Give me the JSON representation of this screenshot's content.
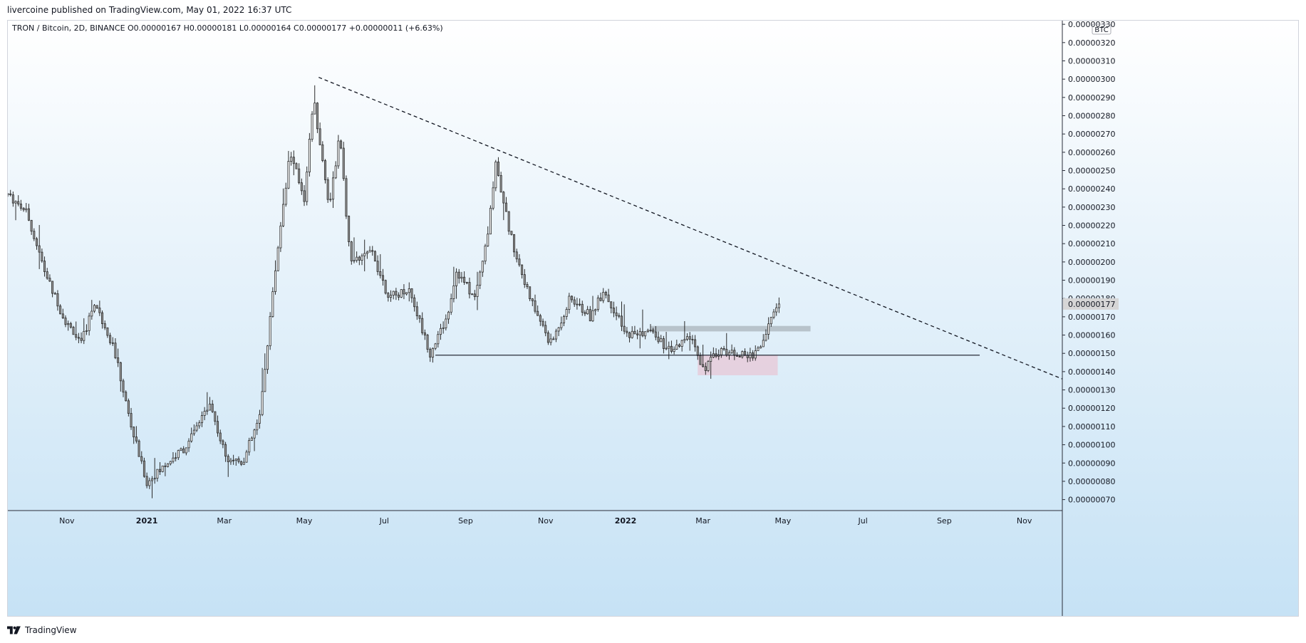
{
  "header": {
    "publisher": "livercoine published on TradingView.com, May 01, 2022 16:37 UTC"
  },
  "footer": {
    "brand": "TradingView",
    "logo_icon": "tradingview-logo-icon"
  },
  "colors": {
    "candle_body": "#9a9a9a",
    "wick": "#2b2b2b",
    "last_price_label_bg": "#d6d6d6",
    "resistance_zone": "#a9b4bb",
    "support_zone": "#e7c9d8"
  },
  "chart_data": {
    "type": "candlestick",
    "legend": "TRON / Bitcoin, 2D, BINANCE  O0.00000167  H0.00000181  L0.00000164  C0.00000177  +0.00000011 (+6.63%)",
    "ohlc": {
      "symbol": "TRON / Bitcoin",
      "interval": "2D",
      "exchange": "BINANCE",
      "open": "0.00000167",
      "high": "0.00000181",
      "low": "0.00000164",
      "close": "0.00000177",
      "change": "+0.00000011 (+6.63%)"
    },
    "currency_label": "BTC",
    "last_price": 1.77e-06,
    "last_price_label": "0.00000177",
    "x_ticks": [
      {
        "label": "Nov",
        "date": "2020-11-01",
        "bold": false
      },
      {
        "label": "2021",
        "date": "2021-01-01",
        "bold": true
      },
      {
        "label": "Mar",
        "date": "2021-03-01",
        "bold": false
      },
      {
        "label": "May",
        "date": "2021-05-01",
        "bold": false
      },
      {
        "label": "Jul",
        "date": "2021-07-01",
        "bold": false
      },
      {
        "label": "Sep",
        "date": "2021-09-01",
        "bold": false
      },
      {
        "label": "Nov",
        "date": "2021-11-01",
        "bold": false
      },
      {
        "label": "2022",
        "date": "2022-01-01",
        "bold": true
      },
      {
        "label": "Mar",
        "date": "2022-03-01",
        "bold": false
      },
      {
        "label": "May",
        "date": "2022-05-01",
        "bold": false
      },
      {
        "label": "Jul",
        "date": "2022-07-01",
        "bold": false
      },
      {
        "label": "Sep",
        "date": "2022-09-01",
        "bold": false
      },
      {
        "label": "Nov",
        "date": "2022-11-01",
        "bold": false
      }
    ],
    "y_ticks": [
      {
        "value": 3.3e-06,
        "label": "0.00000330"
      },
      {
        "value": 3.2e-06,
        "label": "0.00000320"
      },
      {
        "value": 3.1e-06,
        "label": "0.00000310"
      },
      {
        "value": 3e-06,
        "label": "0.00000300"
      },
      {
        "value": 2.9e-06,
        "label": "0.00000290"
      },
      {
        "value": 2.8e-06,
        "label": "0.00000280"
      },
      {
        "value": 2.7e-06,
        "label": "0.00000270"
      },
      {
        "value": 2.6e-06,
        "label": "0.00000260"
      },
      {
        "value": 2.5e-06,
        "label": "0.00000250"
      },
      {
        "value": 2.4e-06,
        "label": "0.00000240"
      },
      {
        "value": 2.3e-06,
        "label": "0.00000230"
      },
      {
        "value": 2.2e-06,
        "label": "0.00000220"
      },
      {
        "value": 2.1e-06,
        "label": "0.00000210"
      },
      {
        "value": 2e-06,
        "label": "0.00000200"
      },
      {
        "value": 1.9e-06,
        "label": "0.00000190"
      },
      {
        "value": 1.8e-06,
        "label": "0.00000180"
      },
      {
        "value": 1.7e-06,
        "label": "0.00000170"
      },
      {
        "value": 1.6e-06,
        "label": "0.00000160"
      },
      {
        "value": 1.5e-06,
        "label": "0.00000150"
      },
      {
        "value": 1.4e-06,
        "label": "0.00000140"
      },
      {
        "value": 1.3e-06,
        "label": "0.00000130"
      },
      {
        "value": 1.2e-06,
        "label": "0.00000120"
      },
      {
        "value": 1.1e-06,
        "label": "0.00000110"
      },
      {
        "value": 1e-06,
        "label": "0.00000100"
      },
      {
        "value": 9e-07,
        "label": "0.00000090"
      },
      {
        "value": 8e-07,
        "label": "0.00000080"
      },
      {
        "value": 7e-07,
        "label": "0.00000070"
      }
    ],
    "x_range": [
      "2020-09-17",
      "2022-11-30"
    ],
    "y_range": [
      6.4e-07,
      3.32e-06
    ],
    "series_path": [
      [
        "2020-09-17",
        2.37e-06
      ],
      [
        "2020-10-01",
        2.28e-06
      ],
      [
        "2020-10-15",
        1.95e-06
      ],
      [
        "2020-10-29",
        1.7e-06
      ],
      [
        "2020-11-12",
        1.55e-06
      ],
      [
        "2020-11-22",
        1.78e-06
      ],
      [
        "2020-12-06",
        1.55e-06
      ],
      [
        "2020-12-20",
        1.1e-06
      ],
      [
        "2021-01-01",
        7.9e-07
      ],
      [
        "2021-01-14",
        8.8e-07
      ],
      [
        "2021-02-01",
        1e-06
      ],
      [
        "2021-02-18",
        1.23e-06
      ],
      [
        "2021-03-01",
        9.5e-07
      ],
      [
        "2021-03-15",
        9e-07
      ],
      [
        "2021-03-28",
        1.15e-06
      ],
      [
        "2021-04-05",
        1.7e-06
      ],
      [
        "2021-04-12",
        2.15e-06
      ],
      [
        "2021-04-20",
        2.6e-06
      ],
      [
        "2021-05-01",
        2.35e-06
      ],
      [
        "2021-05-08",
        2.9e-06
      ],
      [
        "2021-05-20",
        2.3e-06
      ],
      [
        "2021-05-28",
        2.7e-06
      ],
      [
        "2021-06-05",
        2e-06
      ],
      [
        "2021-06-22",
        2.05e-06
      ],
      [
        "2021-07-05",
        1.8e-06
      ],
      [
        "2021-07-20",
        1.85e-06
      ],
      [
        "2021-08-05",
        1.5e-06
      ],
      [
        "2021-08-18",
        1.7e-06
      ],
      [
        "2021-08-25",
        1.95e-06
      ],
      [
        "2021-09-08",
        1.8e-06
      ],
      [
        "2021-09-18",
        2.15e-06
      ],
      [
        "2021-09-24",
        2.55e-06
      ],
      [
        "2021-10-05",
        2.15e-06
      ],
      [
        "2021-10-20",
        1.8e-06
      ],
      [
        "2021-11-05",
        1.55e-06
      ],
      [
        "2021-11-20",
        1.8e-06
      ],
      [
        "2021-12-05",
        1.7e-06
      ],
      [
        "2021-12-15",
        1.85e-06
      ],
      [
        "2022-01-01",
        1.6e-06
      ],
      [
        "2022-01-20",
        1.62e-06
      ],
      [
        "2022-02-05",
        1.5e-06
      ],
      [
        "2022-02-20",
        1.6e-06
      ],
      [
        "2022-03-01",
        1.42e-06
      ],
      [
        "2022-03-15",
        1.52e-06
      ],
      [
        "2022-04-05",
        1.48e-06
      ],
      [
        "2022-04-15",
        1.55e-06
      ],
      [
        "2022-04-22",
        1.7e-06
      ],
      [
        "2022-04-29",
        1.77e-06
      ]
    ],
    "annotations": {
      "trendline": {
        "style": "dashed",
        "from": [
          "2021-05-12",
          3.01e-06
        ],
        "to": [
          "2022-11-30",
          1.36e-06
        ]
      },
      "support_line": {
        "style": "solid",
        "from": [
          "2021-08-09",
          1.49e-06
        ],
        "to": [
          "2022-09-28",
          1.49e-06
        ]
      },
      "resistance_zone": {
        "from_date": "2022-01-20",
        "to_date": "2022-05-22",
        "low": 1.62e-06,
        "high": 1.65e-06
      },
      "support_zone": {
        "from_date": "2022-02-25",
        "to_date": "2022-04-27",
        "low": 1.38e-06,
        "high": 1.49e-06
      }
    },
    "grid": false
  }
}
